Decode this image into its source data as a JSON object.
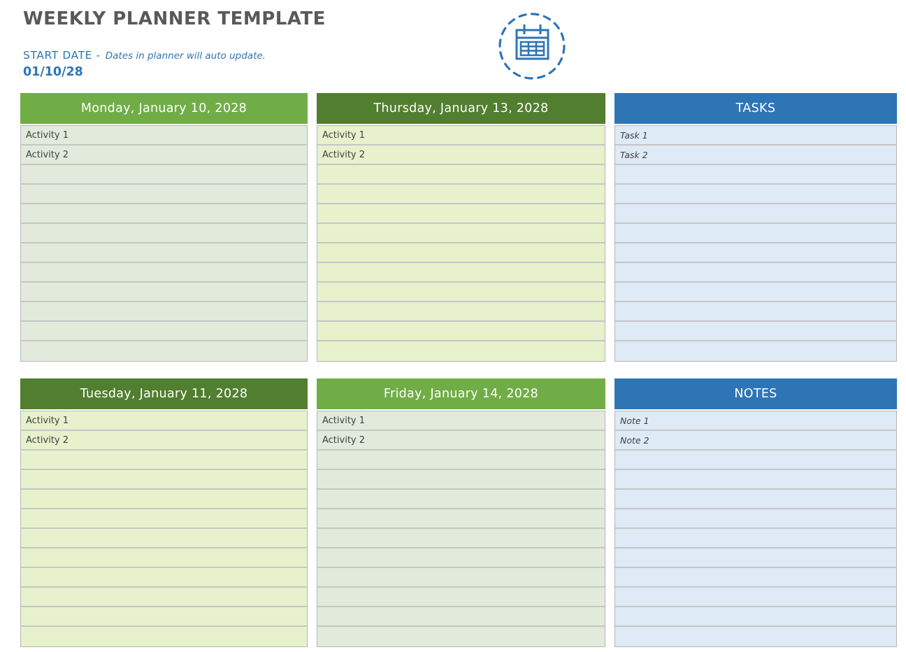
{
  "header": {
    "title": "WEEKLY PLANNER TEMPLATE",
    "start_date_label": "START DATE -",
    "start_date_note": "Dates in planner will auto update.",
    "start_date_value": "01/10/28",
    "icon": "calendar-icon"
  },
  "colors": {
    "title_text": "#595959",
    "accent_blue": "#2E75B6",
    "light_green_header": "#70AD47",
    "dark_green_header": "#527E30",
    "blue_header": "#2E75B6",
    "sage_row": "#E2EBDB",
    "yellow_green_row": "#E7F2CC",
    "blue_row": "#DEEAF6",
    "grid_line": "#C6C6C6"
  },
  "panels": [
    {
      "id": "monday",
      "title": "Monday, January 10, 2028",
      "header_color": "#70AD47",
      "row_color": "#E2EBDB",
      "entries": [
        "Activity 1",
        "Activity 2"
      ],
      "row_count": 12,
      "italic": false,
      "row_name": "activity-row"
    },
    {
      "id": "thursday",
      "title": "Thursday, January 13, 2028",
      "header_color": "#527E30",
      "row_color": "#E7F2CC",
      "entries": [
        "Activity 1",
        "Activity 2"
      ],
      "row_count": 12,
      "italic": false,
      "row_name": "activity-row"
    },
    {
      "id": "tasks",
      "title": "TASKS",
      "header_color": "#2E75B6",
      "row_color": "#DEEAF6",
      "entries": [
        "Task 1",
        "Task 2"
      ],
      "row_count": 12,
      "italic": true,
      "row_name": "task-row"
    },
    {
      "id": "tuesday",
      "title": "Tuesday, January 11, 2028",
      "header_color": "#527E30",
      "row_color": "#E7F2CC",
      "entries": [
        "Activity 1",
        "Activity 2"
      ],
      "row_count": 12,
      "italic": false,
      "row_name": "activity-row"
    },
    {
      "id": "friday",
      "title": "Friday, January 14, 2028",
      "header_color": "#70AD47",
      "row_color": "#E2EBDB",
      "entries": [
        "Activity 1",
        "Activity 2"
      ],
      "row_count": 12,
      "italic": false,
      "row_name": "activity-row"
    },
    {
      "id": "notes",
      "title": "NOTES",
      "header_color": "#2E75B6",
      "row_color": "#DEEAF6",
      "entries": [
        "Note 1",
        "Note 2"
      ],
      "row_count": 12,
      "italic": true,
      "row_name": "note-row"
    }
  ]
}
